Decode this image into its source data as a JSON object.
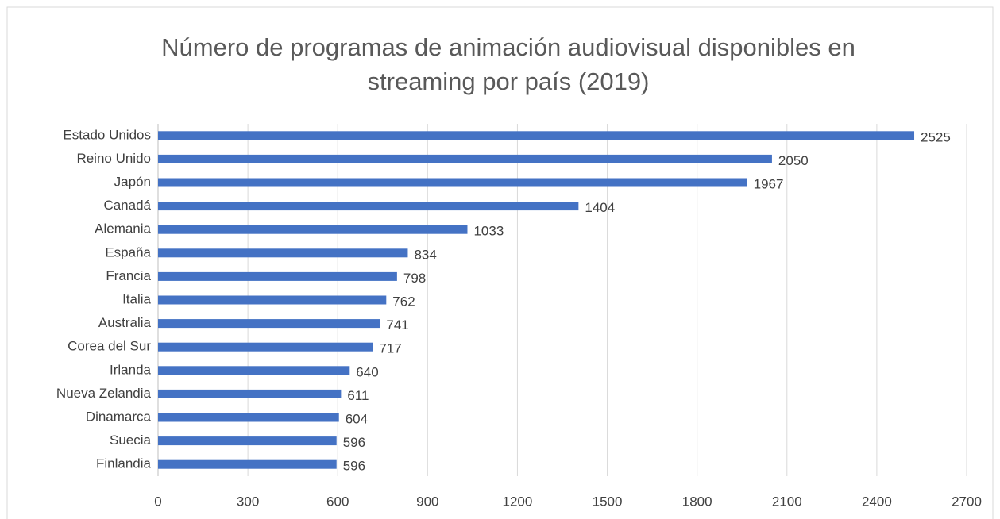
{
  "chart_data": {
    "type": "bar",
    "orientation": "horizontal",
    "title": [
      "Número de programas de animación audiovisual disponibles en",
      "streaming por país (2019)"
    ],
    "categories": [
      "Estado Unidos",
      "Reino Unido",
      "Japón",
      "Canadá",
      "Alemania",
      "España",
      "Francia",
      "Italia",
      "Australia",
      "Corea del Sur",
      "Irlanda",
      "Nueva Zelandia",
      "Dinamarca",
      "Suecia",
      "Finlandia"
    ],
    "values": [
      2525,
      2050,
      1967,
      1404,
      1033,
      834,
      798,
      762,
      741,
      717,
      640,
      611,
      604,
      596,
      596
    ],
    "color": "#4472c4",
    "xlim": [
      0,
      2700
    ],
    "xticks": [
      0,
      300,
      600,
      900,
      1200,
      1500,
      1800,
      2100,
      2400,
      2700
    ],
    "grid": true
  }
}
